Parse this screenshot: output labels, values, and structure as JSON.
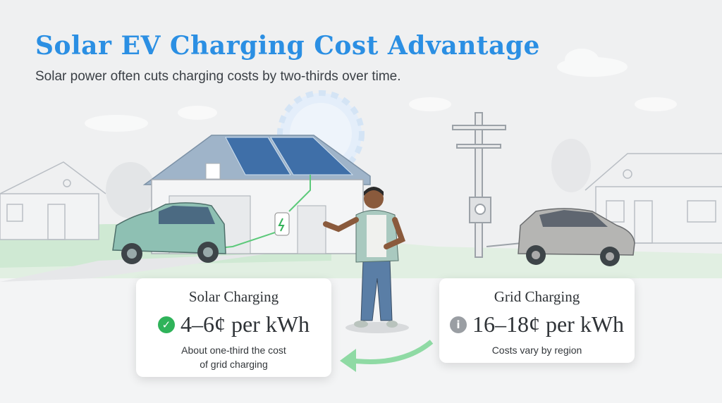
{
  "header": {
    "title": "Solar EV Charging Cost Advantage",
    "subtitle": "Solar power often cuts charging costs by two-thirds over time."
  },
  "solar_card": {
    "title": "Solar Charging",
    "price": "4–6¢ per kWh",
    "note_line1": "About one-third the cost",
    "note_line2": "of grid charging",
    "icon": "check-circle-icon",
    "icon_color": "#2fb35a"
  },
  "grid_card": {
    "title": "Grid Charging",
    "price": "16–18¢ per kWh",
    "note": "Costs vary by region",
    "icon": "info-circle-icon",
    "icon_color": "#9a9ea3"
  },
  "colors": {
    "title": "#2b8fe3",
    "accent_green": "#7fd49a",
    "background": "#eff0f1"
  }
}
